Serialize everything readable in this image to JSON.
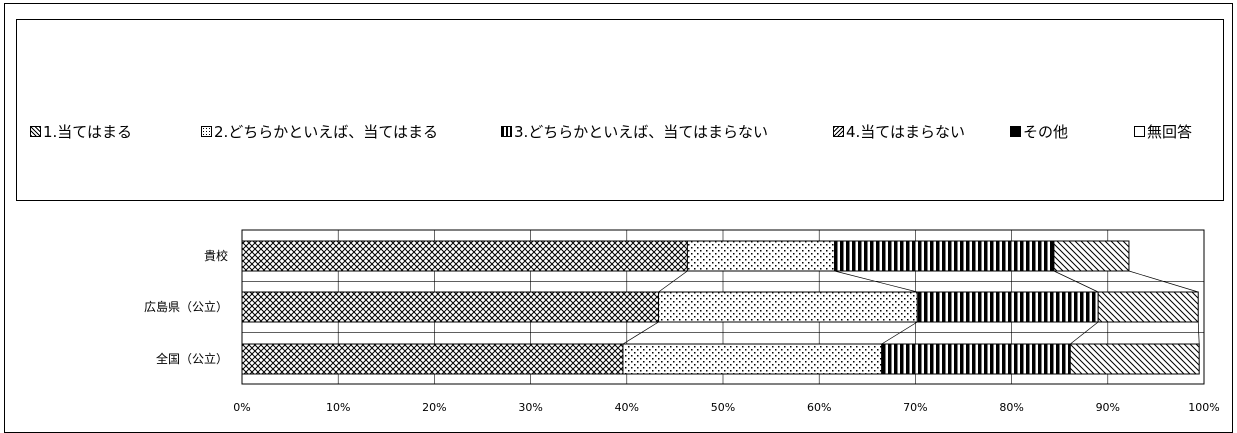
{
  "chart_data": {
    "type": "bar",
    "orientation": "horizontal",
    "stacked": true,
    "categories": [
      "貴校",
      "広島県（公立）",
      "全国（公立）"
    ],
    "series": [
      {
        "name": "1.当てはまる",
        "pattern": "crosshatch",
        "values": [
          46.3,
          43.3,
          39.6
        ]
      },
      {
        "name": "2.どちらかといえば、当てはまる",
        "pattern": "dots",
        "values": [
          15.3,
          26.9,
          26.9
        ]
      },
      {
        "name": "3.どちらかといえば、当てはまらない",
        "pattern": "vertical-stripes",
        "values": [
          22.8,
          18.8,
          19.6
        ]
      },
      {
        "name": "4.当てはまらない",
        "pattern": "diagonal",
        "values": [
          7.8,
          10.4,
          13.4
        ]
      },
      {
        "name": "その他",
        "pattern": "solid",
        "values": [
          0.0,
          0.0,
          0.0
        ]
      },
      {
        "name": "無回答",
        "pattern": "blank",
        "values": [
          0.0,
          0.0,
          0.0
        ]
      }
    ],
    "x_ticks": [
      "0%",
      "10%",
      "20%",
      "30%",
      "40%",
      "50%",
      "60%",
      "70%",
      "80%",
      "90%",
      "100%"
    ],
    "xlim": [
      0,
      100
    ],
    "grid": true,
    "series_lines": true,
    "legend_position": "top"
  },
  "colors": {
    "ink": "#000000",
    "background": "#ffffff",
    "grid": "#000000"
  }
}
